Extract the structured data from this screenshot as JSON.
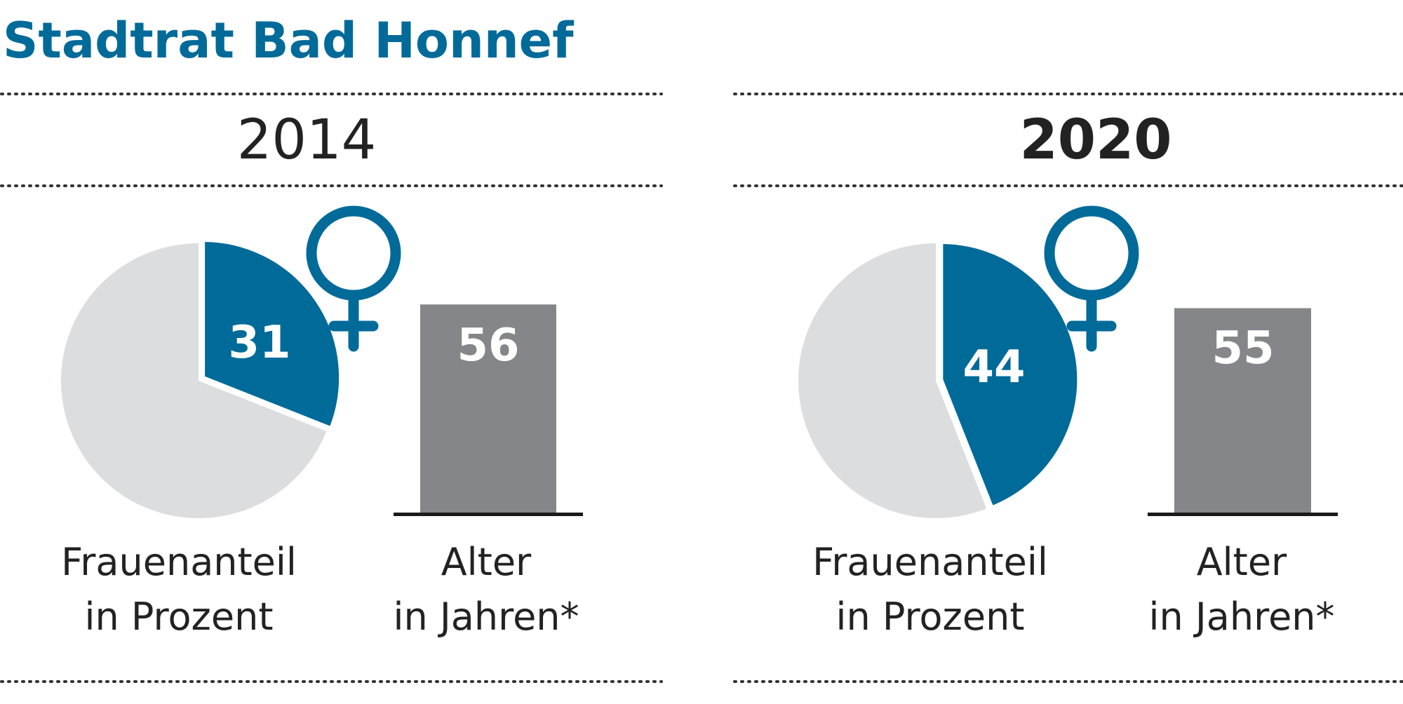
{
  "title": "Stadtrat Bad Honnef",
  "colors": {
    "female": "#006a99",
    "rest": "#dcdddf",
    "bar": "#858689",
    "baseline": "#1a1a1a",
    "text": "#222222"
  },
  "chart_data": [
    {
      "type": "pie",
      "year": "2014",
      "icon": "female-symbol-icon",
      "values": [
        31,
        69
      ],
      "value_label": "31",
      "label_line1": "Frauenanteil",
      "label_line2": "in Prozent"
    },
    {
      "type": "bar",
      "year": "2014",
      "values": [
        56
      ],
      "value_label": "56",
      "label_line1": "Alter",
      "label_line2": "in Jahren*"
    },
    {
      "type": "pie",
      "year": "2020",
      "icon": "female-symbol-icon",
      "values": [
        44,
        56
      ],
      "value_label": "44",
      "label_line1": "Frauenanteil",
      "label_line2": "in Prozent"
    },
    {
      "type": "bar",
      "year": "2020",
      "values": [
        55
      ],
      "value_label": "55",
      "label_line1": "Alter",
      "label_line2": "in Jahren*"
    }
  ]
}
